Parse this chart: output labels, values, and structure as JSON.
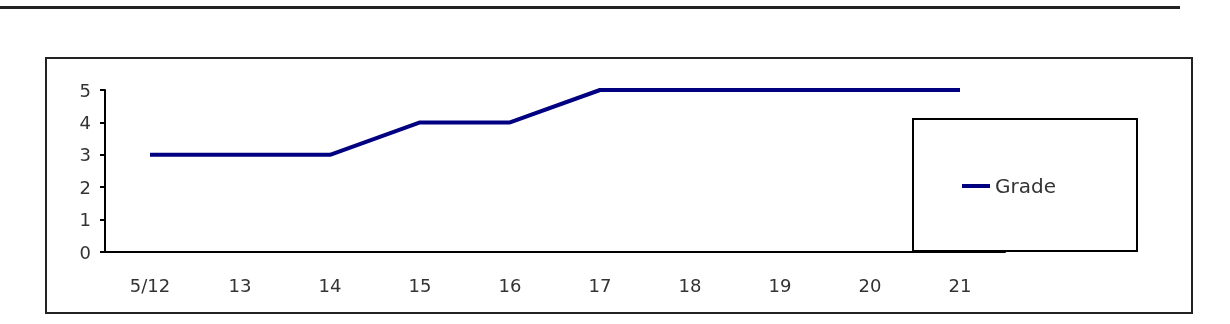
{
  "chart_data": {
    "type": "line",
    "categories": [
      "5/12",
      "13",
      "14",
      "15",
      "16",
      "17",
      "18",
      "19",
      "20",
      "21"
    ],
    "series": [
      {
        "name": "Grade",
        "color": "#000080",
        "values": [
          3,
          3,
          3,
          4,
          4,
          5,
          5,
          5,
          5,
          5
        ]
      }
    ],
    "ylim": [
      0,
      5
    ],
    "yticks": [
      0,
      1,
      2,
      3,
      4,
      5
    ],
    "grid": false,
    "legend": "right",
    "marker": "none",
    "line_style": "solid"
  }
}
